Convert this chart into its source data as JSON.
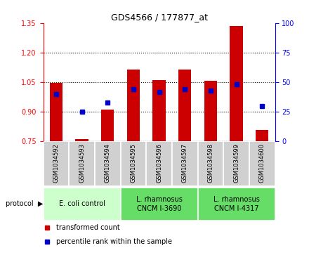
{
  "title": "GDS4566 / 177877_at",
  "samples": [
    "GSM1034592",
    "GSM1034593",
    "GSM1034594",
    "GSM1034595",
    "GSM1034596",
    "GSM1034597",
    "GSM1034598",
    "GSM1034599",
    "GSM1034600"
  ],
  "transformed_count": [
    1.048,
    0.763,
    0.912,
    1.113,
    1.06,
    1.115,
    1.058,
    1.335,
    0.808
  ],
  "percentile_rank": [
    40,
    25,
    33,
    44,
    42,
    44,
    43,
    48,
    30
  ],
  "ylim_left": [
    0.75,
    1.35
  ],
  "ylim_right": [
    0,
    100
  ],
  "yticks_left": [
    0.75,
    0.9,
    1.05,
    1.2,
    1.35
  ],
  "yticks_right": [
    0,
    25,
    50,
    75,
    100
  ],
  "bar_color": "#cc0000",
  "dot_color": "#0000cc",
  "bar_bottom": 0.75,
  "bar_width": 0.5,
  "protocol_groups": [
    {
      "label": "E. coli control",
      "start": 0,
      "end": 2,
      "color": "#ccffcc"
    },
    {
      "label": "L. rhamnosus\nCNCM I-3690",
      "start": 3,
      "end": 5,
      "color": "#66dd66"
    },
    {
      "label": "L. rhamnosus\nCNCM I-4317",
      "start": 6,
      "end": 8,
      "color": "#66dd66"
    }
  ],
  "legend_items": [
    {
      "label": "transformed count",
      "color": "#cc0000"
    },
    {
      "label": "percentile rank within the sample",
      "color": "#0000cc"
    }
  ],
  "sample_bg_color": "#d0d0d0",
  "grid_color": "black",
  "grid_linestyle": ":",
  "grid_linewidth": 0.8,
  "title_fontsize": 9,
  "tick_fontsize": 7,
  "label_fontsize": 6,
  "proto_fontsize": 7,
  "legend_fontsize": 7
}
